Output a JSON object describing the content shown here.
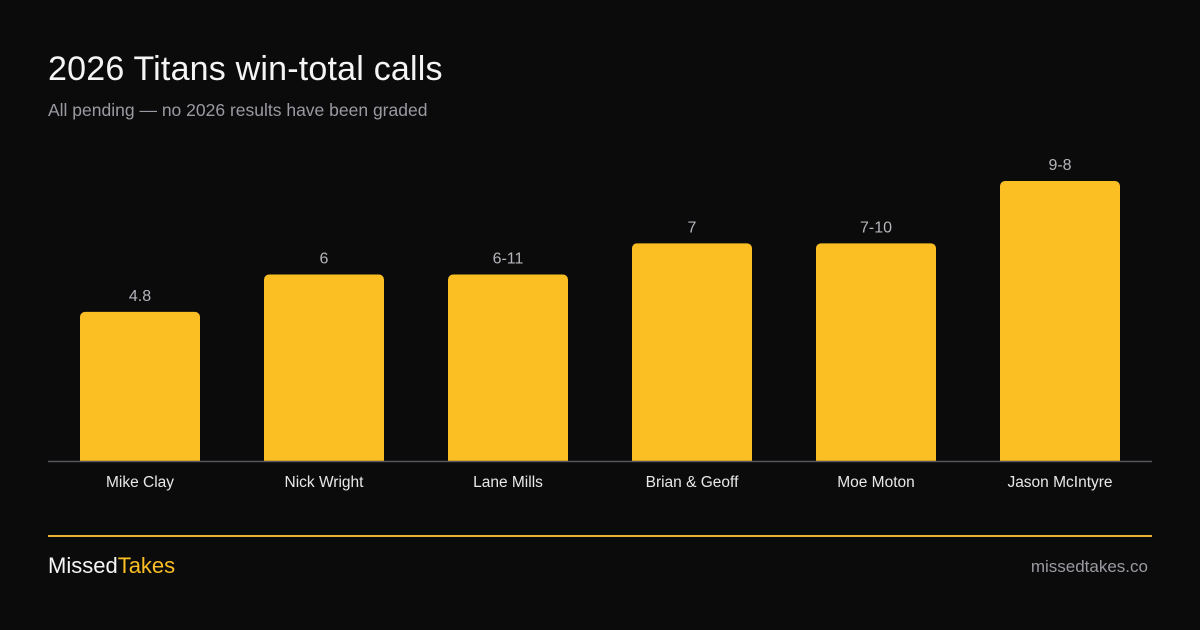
{
  "chart_data": {
    "type": "bar",
    "title": "2026 Titans win-total calls",
    "subtitle": "All pending — no 2026 results have been graded",
    "categories": [
      "Mike Clay",
      "Nick Wright",
      "Lane Mills",
      "Brian & Geoff",
      "Moe Moton",
      "Jason McIntyre"
    ],
    "values": [
      4.8,
      6,
      6,
      7,
      7,
      9
    ],
    "data_labels": [
      "4.8",
      "6",
      "6-11",
      "7",
      "7-10",
      "9-8"
    ],
    "ylim": [
      0,
      9
    ],
    "grid": false,
    "legend": "none",
    "colors": {
      "bar": "#fbbf24",
      "axis": "#55555c",
      "data_label": "#b5b5bb",
      "category_label": "#e8e8ea"
    }
  },
  "footer": {
    "brand_part1": "Missed",
    "brand_part2": "Takes",
    "site": "missedtakes.co",
    "accent_color": "#fbbf24"
  }
}
